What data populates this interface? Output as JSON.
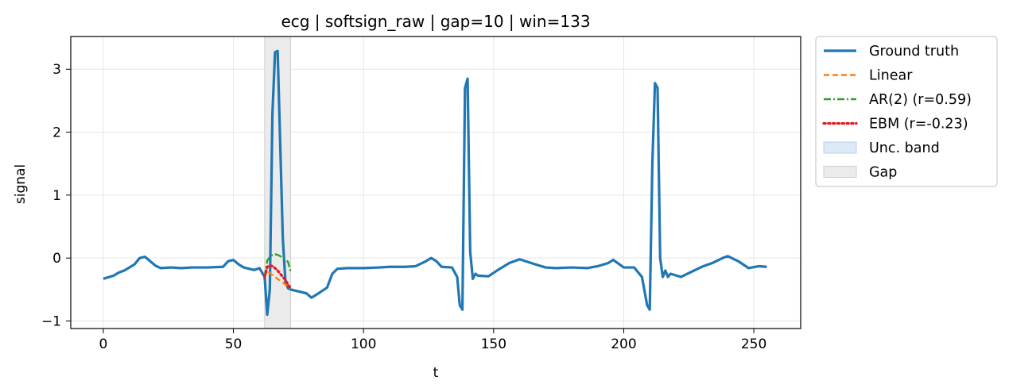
{
  "chart_data": {
    "type": "line",
    "title": "ecg | softsign_raw | gap=10 | win=133",
    "xlabel": "t",
    "ylabel": "signal",
    "xlim": [
      -12.5,
      268
    ],
    "ylim": [
      -1.12,
      3.52
    ],
    "xticks": [
      0,
      50,
      100,
      150,
      200,
      250
    ],
    "yticks": [
      -1,
      0,
      1,
      2,
      3
    ],
    "ytick_labels": [
      "−1",
      "0",
      "1",
      "2",
      "3"
    ],
    "grid": true,
    "legend_position": "outside-right-top",
    "gap_region": [
      62,
      72
    ],
    "series": [
      {
        "name": "Ground truth",
        "color": "#1f77b4",
        "style": "solid",
        "x": [
          0,
          4,
          6,
          8,
          10,
          12,
          14,
          16,
          18,
          20,
          22,
          26,
          30,
          34,
          40,
          46,
          48,
          50,
          52,
          54,
          56,
          58,
          60,
          62,
          63,
          64,
          65,
          66,
          67,
          68,
          69,
          70,
          71,
          72,
          74,
          78,
          80,
          82,
          86,
          88,
          90,
          94,
          100,
          106,
          110,
          116,
          120,
          124,
          126,
          128,
          130,
          134,
          136,
          137,
          138,
          139,
          140,
          141,
          142,
          143,
          144,
          148,
          152,
          156,
          160,
          166,
          170,
          174,
          180,
          186,
          190,
          194,
          196,
          198,
          200,
          204,
          207,
          209,
          210,
          211,
          212,
          213,
          214,
          215,
          216,
          217,
          218,
          222,
          226,
          230,
          234,
          238,
          240,
          244,
          248,
          252,
          255
        ],
        "y": [
          -0.33,
          -0.28,
          -0.23,
          -0.2,
          -0.15,
          -0.1,
          0.0,
          0.02,
          -0.05,
          -0.12,
          -0.16,
          -0.15,
          -0.16,
          -0.15,
          -0.15,
          -0.14,
          -0.05,
          -0.03,
          -0.1,
          -0.15,
          -0.17,
          -0.19,
          -0.16,
          -0.3,
          -0.9,
          -0.5,
          2.3,
          3.27,
          3.29,
          1.8,
          0.3,
          -0.38,
          -0.48,
          -0.5,
          -0.52,
          -0.56,
          -0.63,
          -0.58,
          -0.47,
          -0.25,
          -0.17,
          -0.16,
          -0.16,
          -0.15,
          -0.14,
          -0.14,
          -0.13,
          -0.05,
          0.0,
          -0.05,
          -0.14,
          -0.15,
          -0.3,
          -0.75,
          -0.82,
          2.7,
          2.85,
          0.1,
          -0.33,
          -0.25,
          -0.28,
          -0.29,
          -0.18,
          -0.08,
          -0.02,
          -0.1,
          -0.15,
          -0.16,
          -0.15,
          -0.16,
          -0.13,
          -0.08,
          -0.03,
          -0.09,
          -0.15,
          -0.15,
          -0.3,
          -0.75,
          -0.82,
          1.5,
          2.78,
          2.7,
          0.0,
          -0.3,
          -0.2,
          -0.3,
          -0.25,
          -0.3,
          -0.22,
          -0.14,
          -0.08,
          0.0,
          0.03,
          -0.05,
          -0.16,
          -0.13,
          -0.14
        ]
      },
      {
        "name": "Linear",
        "color": "#ff7f0e",
        "style": "dashed",
        "x": [
          62,
          63,
          64,
          65,
          66,
          67,
          68,
          69,
          70,
          71,
          72
        ],
        "y": [
          -0.3,
          -0.2,
          -0.24,
          -0.27,
          -0.3,
          -0.33,
          -0.36,
          -0.39,
          -0.42,
          -0.45,
          -0.48
        ]
      },
      {
        "name": "AR(2) (r=0.59)",
        "color": "#2ca02c",
        "style": "dashdot",
        "x": [
          62,
          63,
          64,
          65,
          66,
          67,
          68,
          69,
          70,
          71,
          72
        ],
        "y": [
          -0.3,
          -0.04,
          0.02,
          0.05,
          0.06,
          0.05,
          0.03,
          0.0,
          -0.03,
          -0.06,
          -0.22
        ]
      },
      {
        "name": "EBM (r=-0.23)",
        "color": "#e41a1c",
        "style": "dotted",
        "x": [
          62,
          63,
          64,
          65,
          66,
          67,
          68,
          69,
          70,
          71,
          72
        ],
        "y": [
          -0.3,
          -0.14,
          -0.12,
          -0.13,
          -0.16,
          -0.2,
          -0.25,
          -0.3,
          -0.35,
          -0.42,
          -0.48
        ]
      }
    ],
    "legend": [
      {
        "label": "Ground truth",
        "kind": "line",
        "color": "#1f77b4",
        "style": "solid"
      },
      {
        "label": "Linear",
        "kind": "line",
        "color": "#ff7f0e",
        "style": "dashed"
      },
      {
        "label": "AR(2) (r=0.59)",
        "kind": "line",
        "color": "#2ca02c",
        "style": "dashdot"
      },
      {
        "label": "EBM (r=-0.23)",
        "kind": "line",
        "color": "#e41a1c",
        "style": "dotted"
      },
      {
        "label": "Unc. band",
        "kind": "patch",
        "color": "#dce9f6",
        "edge": "#b8d1ea"
      },
      {
        "label": "Gap",
        "kind": "patch",
        "color": "#ebebeb",
        "edge": "#cfcfcf"
      }
    ]
  }
}
